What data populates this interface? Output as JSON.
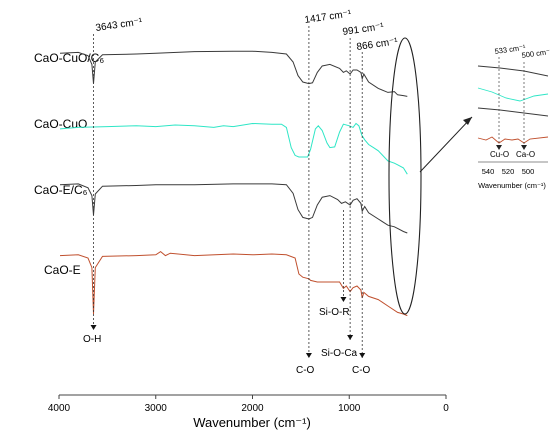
{
  "chart_data": {
    "type": "line",
    "title": "",
    "xlabel": "Wavenumber (cm⁻¹)",
    "ylabel": "",
    "x_range": [
      4000,
      0
    ],
    "x_ticks": [
      "4000",
      "3000",
      "2000",
      "1000",
      "0"
    ],
    "grid": false,
    "legend": "none",
    "series": [
      {
        "name": "CaO-CuO/C₆",
        "color": "#3a3a3a",
        "x": [
          3990,
          3800,
          3700,
          3660,
          3643,
          3625,
          3550,
          3200,
          3000,
          2600,
          2200,
          2000,
          1800,
          1650,
          1580,
          1530,
          1480,
          1417,
          1380,
          1330,
          1280,
          1200,
          1100,
          1060,
          1030,
          991,
          960,
          920,
          880,
          866,
          850,
          800,
          700,
          600,
          533,
          500,
          440,
          400
        ],
        "y": [
          0.96,
          0.97,
          0.93,
          0.82,
          0.58,
          0.85,
          0.94,
          0.95,
          0.96,
          0.98,
          0.985,
          0.985,
          0.97,
          0.95,
          0.85,
          0.68,
          0.6,
          0.58,
          0.59,
          0.72,
          0.8,
          0.82,
          0.77,
          0.72,
          0.74,
          0.7,
          0.75,
          0.75,
          0.72,
          0.64,
          0.7,
          0.6,
          0.52,
          0.47,
          0.48,
          0.44,
          0.43,
          0.42
        ]
      },
      {
        "name": "CaO-CuO",
        "color": "#2ee6c6",
        "x": [
          3990,
          3800,
          3500,
          3200,
          3000,
          2800,
          2600,
          2400,
          2300,
          2200,
          2000,
          1800,
          1700,
          1650,
          1600,
          1560,
          1520,
          1480,
          1430,
          1400,
          1350,
          1320,
          1280,
          1230,
          1200,
          1150,
          1100,
          1060,
          1000,
          960,
          930,
          900,
          870,
          840,
          800,
          750,
          700,
          600,
          533,
          500,
          440,
          400
        ],
        "y": [
          0.86,
          0.88,
          0.89,
          0.9,
          0.89,
          0.91,
          0.9,
          0.88,
          0.9,
          0.89,
          0.93,
          0.92,
          0.92,
          0.88,
          0.62,
          0.52,
          0.5,
          0.5,
          0.5,
          0.6,
          0.86,
          0.9,
          0.84,
          0.68,
          0.62,
          0.63,
          0.82,
          0.92,
          0.9,
          0.88,
          0.93,
          0.9,
          0.78,
          0.72,
          0.66,
          0.62,
          0.58,
          0.45,
          0.42,
          0.4,
          0.36,
          0.28
        ]
      },
      {
        "name": "CaO-E/C₆",
        "color": "#3a3a3a",
        "x": [
          3990,
          3800,
          3700,
          3660,
          3643,
          3625,
          3550,
          3200,
          3000,
          2600,
          2200,
          2000,
          1800,
          1650,
          1580,
          1530,
          1480,
          1417,
          1380,
          1330,
          1280,
          1200,
          1120,
          1080,
          1040,
          991,
          960,
          920,
          880,
          866,
          840,
          800,
          700,
          600,
          533,
          500,
          440,
          400
        ],
        "y": [
          0.94,
          0.95,
          0.9,
          0.8,
          0.55,
          0.82,
          0.92,
          0.93,
          0.94,
          0.94,
          0.95,
          0.95,
          0.95,
          0.94,
          0.83,
          0.62,
          0.52,
          0.5,
          0.52,
          0.68,
          0.78,
          0.8,
          0.75,
          0.7,
          0.72,
          0.68,
          0.74,
          0.76,
          0.7,
          0.6,
          0.66,
          0.58,
          0.5,
          0.42,
          0.4,
          0.38,
          0.34,
          0.32
        ]
      },
      {
        "name": "CaO-E",
        "color": "#c0502e",
        "x": [
          3990,
          3800,
          3700,
          3660,
          3643,
          3625,
          3550,
          3200,
          3000,
          2950,
          2900,
          2850,
          2600,
          2200,
          2000,
          1800,
          1650,
          1560,
          1520,
          1480,
          1417,
          1400,
          1330,
          1280,
          1200,
          1100,
          1060,
          1030,
          991,
          960,
          920,
          880,
          866,
          850,
          800,
          700,
          600,
          500,
          440,
          400
        ],
        "y": [
          0.93,
          0.94,
          0.9,
          0.78,
          0.2,
          0.78,
          0.92,
          0.93,
          0.94,
          0.98,
          0.93,
          0.96,
          0.93,
          0.95,
          0.94,
          0.95,
          0.94,
          0.9,
          0.7,
          0.66,
          0.64,
          0.62,
          0.6,
          0.6,
          0.6,
          0.6,
          0.52,
          0.55,
          0.48,
          0.53,
          0.55,
          0.5,
          0.4,
          0.47,
          0.42,
          0.38,
          0.3,
          0.22,
          0.2,
          0.18
        ]
      }
    ],
    "annotations": {
      "peaks": [
        "3643 cm⁻¹",
        "1417 cm⁻¹",
        "991 cm⁻¹",
        "866 cm⁻¹"
      ],
      "assignments": [
        "O-H",
        "C-O",
        "Si-O-R",
        "Si-O-Ca",
        "C-O"
      ]
    },
    "inset": {
      "xlabel": "Wavenumber (cm⁻¹)",
      "x_ticks": [
        "540",
        "520",
        "500"
      ],
      "peaks": [
        "533 cm⁻¹",
        "500 cm⁻¹"
      ],
      "assignments": [
        "Cu-O",
        "Ca-O"
      ]
    }
  }
}
